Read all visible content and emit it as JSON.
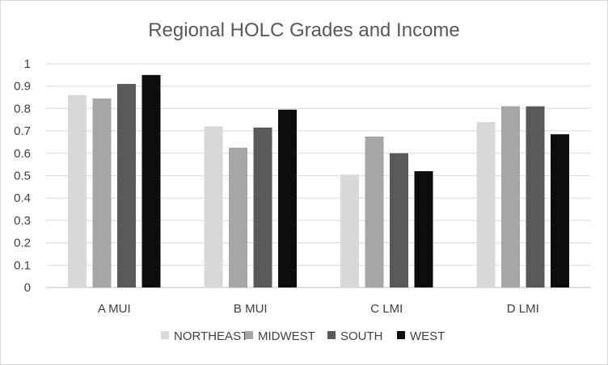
{
  "chart_data": {
    "type": "bar",
    "title": "Regional HOLC Grades and Income",
    "categories": [
      "A MUI",
      "B MUI",
      "C LMI",
      "D LMI"
    ],
    "series": [
      {
        "name": "NORTHEAST",
        "color": "#d9d9d9",
        "values": [
          0.86,
          0.72,
          0.505,
          0.74
        ]
      },
      {
        "name": "MIDWEST",
        "color": "#a6a6a6",
        "values": [
          0.845,
          0.625,
          0.675,
          0.81
        ]
      },
      {
        "name": "SOUTH",
        "color": "#595959",
        "values": [
          0.91,
          0.715,
          0.6,
          0.81
        ]
      },
      {
        "name": "WEST",
        "color": "#0d0d0d",
        "values": [
          0.95,
          0.795,
          0.52,
          0.685
        ]
      }
    ],
    "ylim": [
      0,
      1
    ],
    "yticks": [
      "0",
      "0.1",
      "0.2",
      "0.3",
      "0.4",
      "0.5",
      "0.6",
      "0.7",
      "0.8",
      "0.9",
      "1"
    ],
    "grid": true,
    "legend_position": "bottom"
  }
}
